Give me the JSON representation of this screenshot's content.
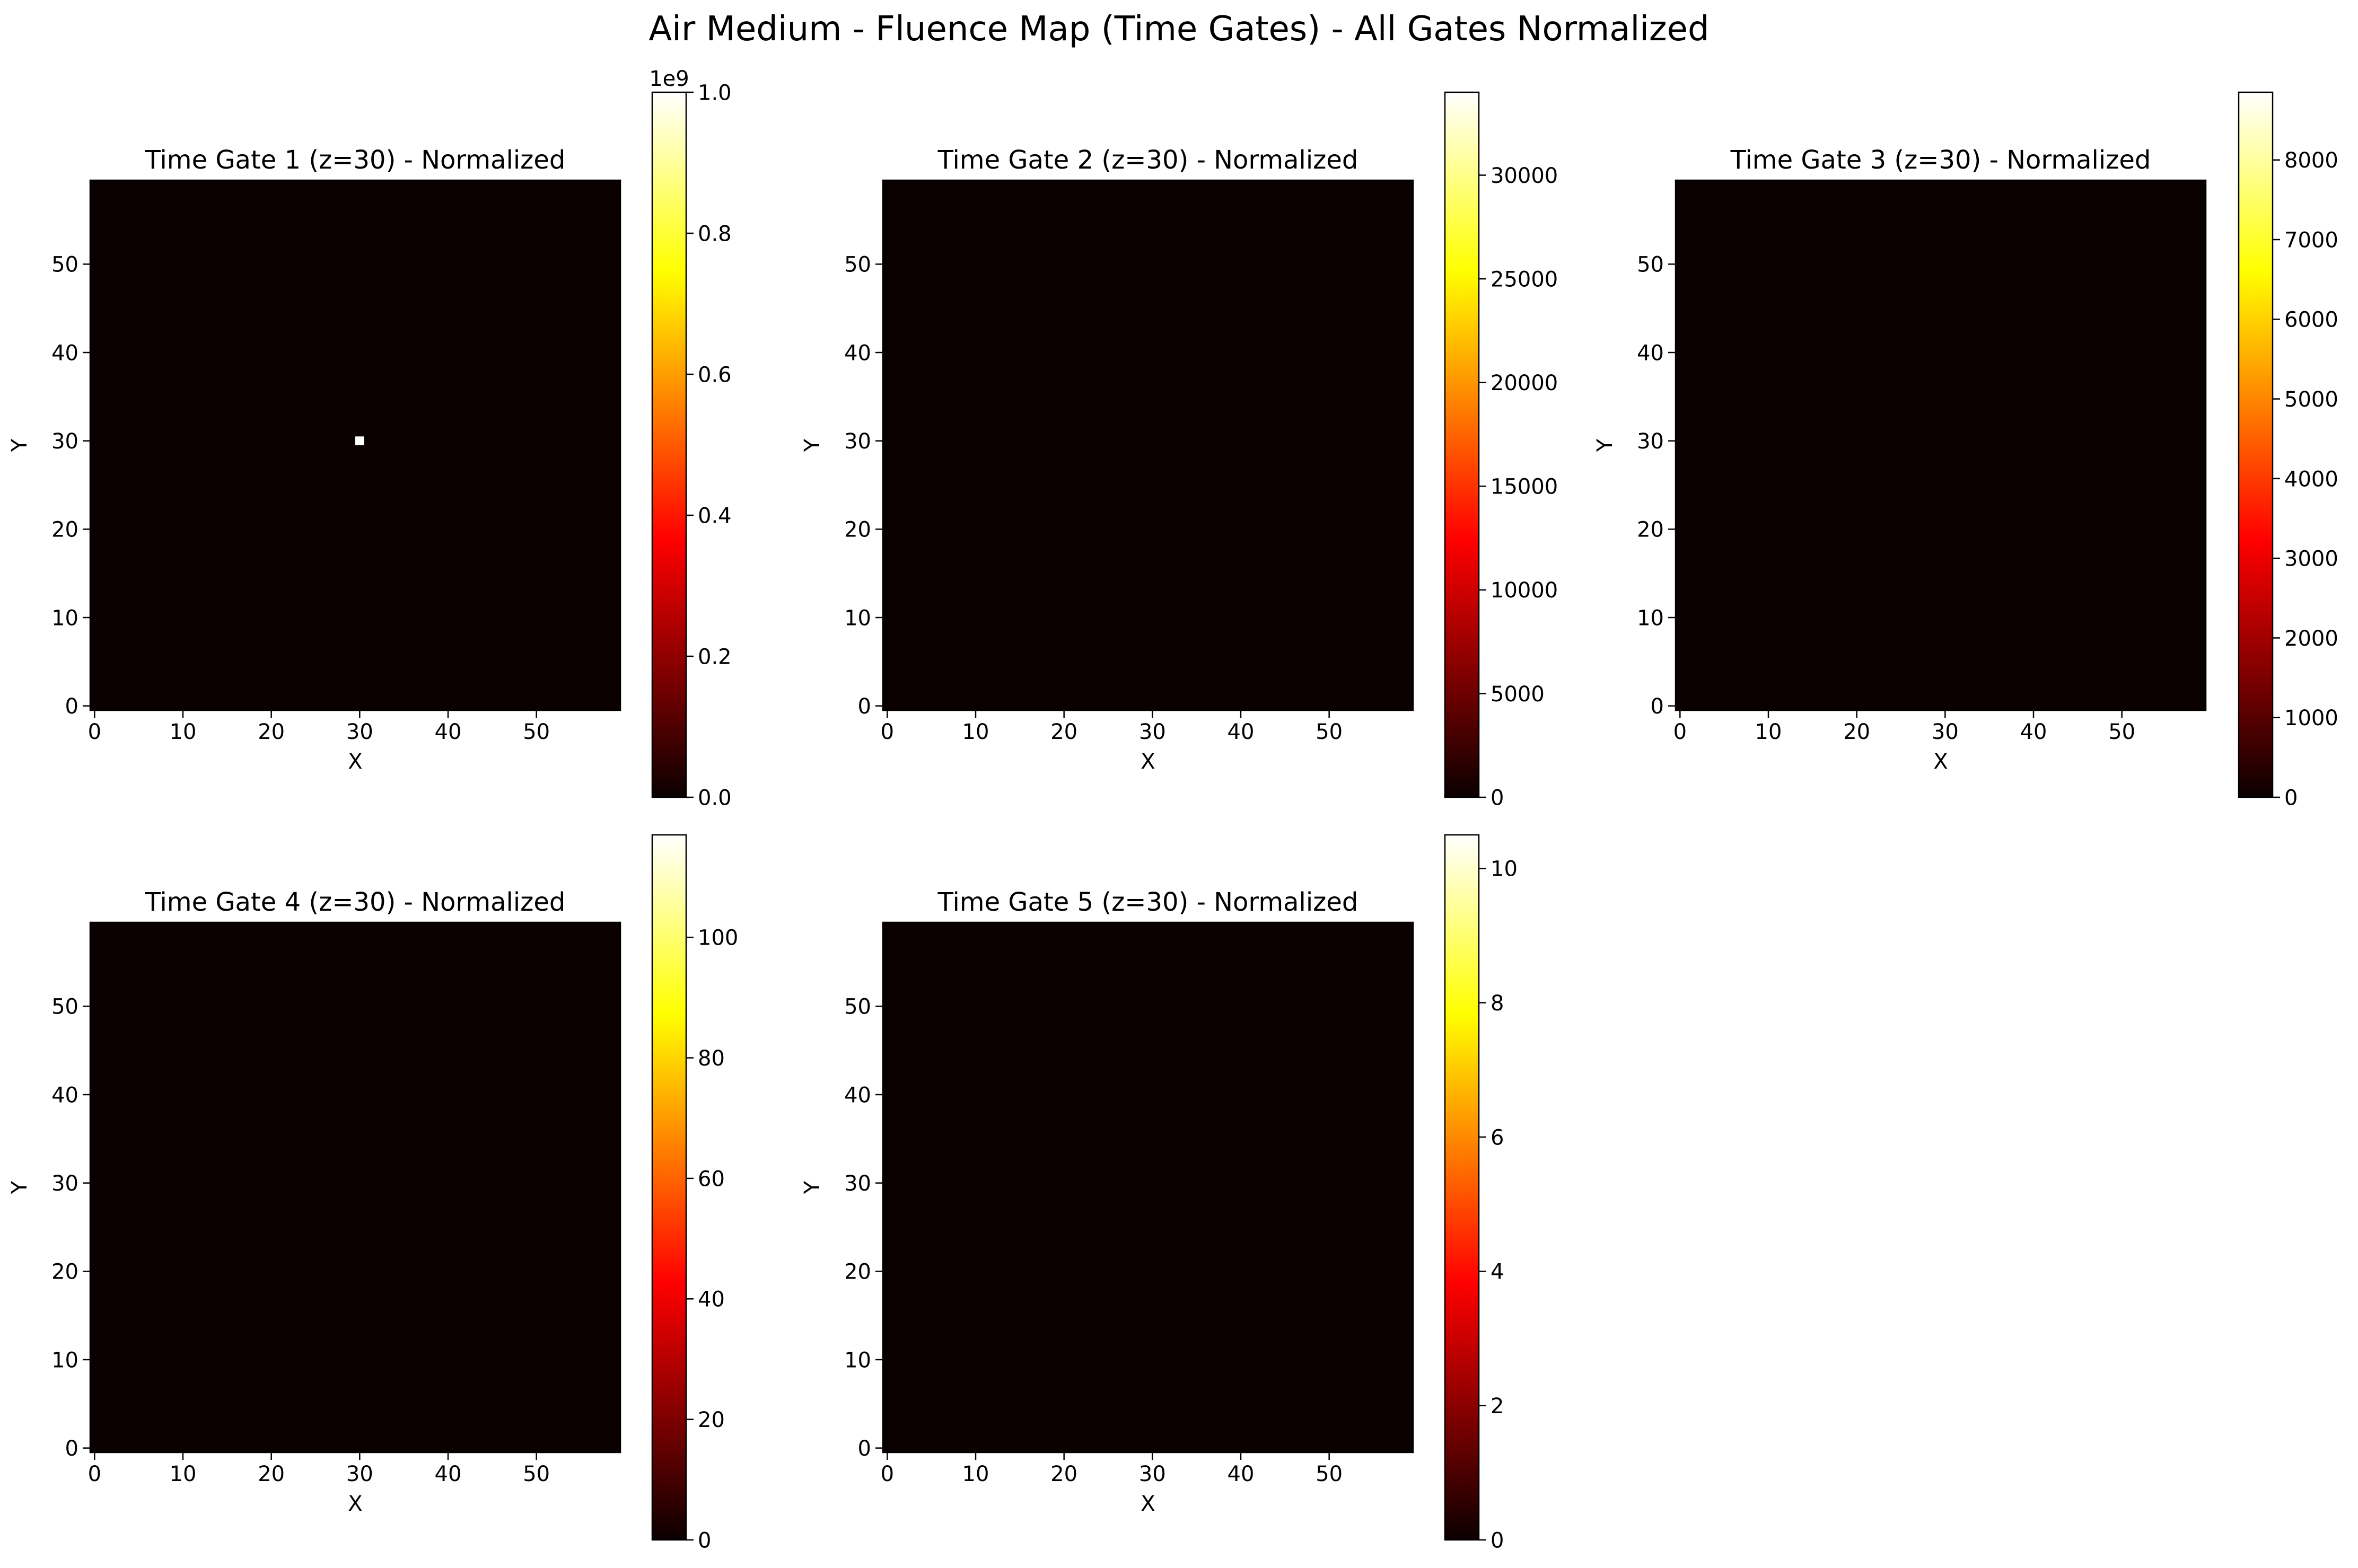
{
  "figure": {
    "title": "Air Medium - Fluence Map (Time Gates) - All Gates Normalized"
  },
  "colormap": {
    "name": "hot",
    "stops": [
      {
        "pos": 0.0,
        "color": "#0b0000"
      },
      {
        "pos": 0.365,
        "color": "#ff0000"
      },
      {
        "pos": 0.746,
        "color": "#ffff00"
      },
      {
        "pos": 1.0,
        "color": "#ffffff"
      }
    ],
    "background_color": "#0b0000"
  },
  "chart_data": [
    {
      "type": "heatmap",
      "title": "Time Gate 1 (z=30) - Normalized",
      "xlabel": "X",
      "ylabel": "Y",
      "xlim": [
        -0.5,
        59.5
      ],
      "ylim": [
        -0.5,
        59.5
      ],
      "xticks": [
        0,
        10,
        20,
        30,
        40,
        50
      ],
      "yticks": [
        0,
        10,
        20,
        30,
        40,
        50
      ],
      "colorbar": {
        "vmin": 0,
        "vmax": 1000000000.0,
        "offset_text": "1e9",
        "ticks": [
          0,
          200000000.0,
          400000000.0,
          600000000.0,
          800000000.0,
          1000000000.0
        ],
        "tick_labels": [
          "0.0",
          "0.2",
          "0.4",
          "0.6",
          "0.8",
          "1.0"
        ]
      },
      "hot_pixels": [
        {
          "x": 30,
          "y": 30,
          "value": 1000000000.0
        }
      ]
    },
    {
      "type": "heatmap",
      "title": "Time Gate 2 (z=30) - Normalized",
      "xlabel": "X",
      "ylabel": "Y",
      "xlim": [
        -0.5,
        59.5
      ],
      "ylim": [
        -0.5,
        59.5
      ],
      "xticks": [
        0,
        10,
        20,
        30,
        40,
        50
      ],
      "yticks": [
        0,
        10,
        20,
        30,
        40,
        50
      ],
      "colorbar": {
        "vmin": 0,
        "vmax": 34000,
        "offset_text": "",
        "ticks": [
          0,
          5000,
          10000,
          15000,
          20000,
          25000,
          30000
        ],
        "tick_labels": [
          "0",
          "5000",
          "10000",
          "15000",
          "20000",
          "25000",
          "30000"
        ]
      },
      "hot_pixels": []
    },
    {
      "type": "heatmap",
      "title": "Time Gate 3 (z=30) - Normalized",
      "xlabel": "X",
      "ylabel": "Y",
      "xlim": [
        -0.5,
        59.5
      ],
      "ylim": [
        -0.5,
        59.5
      ],
      "xticks": [
        0,
        10,
        20,
        30,
        40,
        50
      ],
      "yticks": [
        0,
        10,
        20,
        30,
        40,
        50
      ],
      "colorbar": {
        "vmin": 0,
        "vmax": 8850,
        "offset_text": "",
        "ticks": [
          0,
          1000,
          2000,
          3000,
          4000,
          5000,
          6000,
          7000,
          8000
        ],
        "tick_labels": [
          "0",
          "1000",
          "2000",
          "3000",
          "4000",
          "5000",
          "6000",
          "7000",
          "8000"
        ]
      },
      "hot_pixels": []
    },
    {
      "type": "heatmap",
      "title": "Time Gate 4 (z=30) - Normalized",
      "xlabel": "X",
      "ylabel": "Y",
      "xlim": [
        -0.5,
        59.5
      ],
      "ylim": [
        -0.5,
        59.5
      ],
      "xticks": [
        0,
        10,
        20,
        30,
        40,
        50
      ],
      "yticks": [
        0,
        10,
        20,
        30,
        40,
        50
      ],
      "colorbar": {
        "vmin": 0,
        "vmax": 117,
        "offset_text": "",
        "ticks": [
          0,
          20,
          40,
          60,
          80,
          100
        ],
        "tick_labels": [
          "0",
          "20",
          "40",
          "60",
          "80",
          "100"
        ]
      },
      "hot_pixels": []
    },
    {
      "type": "heatmap",
      "title": "Time Gate 5 (z=30) - Normalized",
      "xlabel": "X",
      "ylabel": "Y",
      "xlim": [
        -0.5,
        59.5
      ],
      "ylim": [
        -0.5,
        59.5
      ],
      "xticks": [
        0,
        10,
        20,
        30,
        40,
        50
      ],
      "yticks": [
        0,
        10,
        20,
        30,
        40,
        50
      ],
      "colorbar": {
        "vmin": 0,
        "vmax": 10.5,
        "offset_text": "",
        "ticks": [
          0,
          2,
          4,
          6,
          8,
          10
        ],
        "tick_labels": [
          "0",
          "2",
          "4",
          "6",
          "8",
          "10"
        ]
      },
      "hot_pixels": []
    }
  ]
}
